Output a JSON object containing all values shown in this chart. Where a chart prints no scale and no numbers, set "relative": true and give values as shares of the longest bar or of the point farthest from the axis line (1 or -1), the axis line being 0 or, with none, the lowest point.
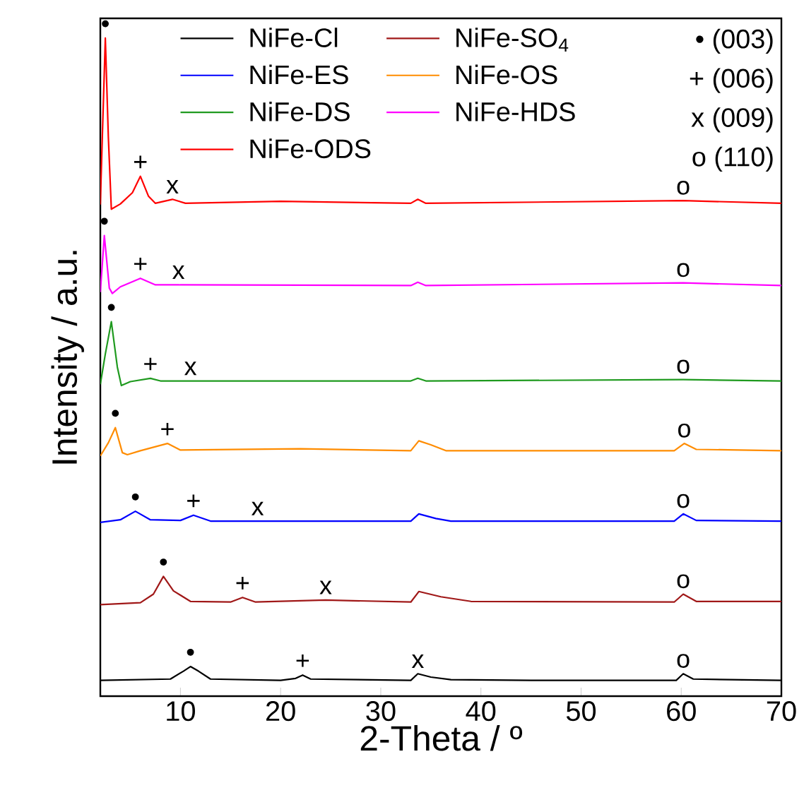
{
  "chart_data": {
    "type": "line",
    "relative": true,
    "xlabel": "2-Theta / º",
    "ylabel": "Intensity / a.u.",
    "xlim": [
      2,
      70
    ],
    "xticks": [
      10,
      20,
      30,
      40,
      50,
      60,
      70
    ],
    "legend": "top",
    "series": [
      {
        "name": "NiFe-Cl",
        "color": "#000000",
        "x": [
          2,
          9,
          10.3,
          11,
          11.8,
          13,
          20,
          21.5,
          22.2,
          23,
          33,
          33.7,
          35,
          37,
          45,
          59.5,
          60.2,
          61.2,
          70
        ],
        "values": [
          0.024,
          0.026,
          0.038,
          0.045,
          0.038,
          0.026,
          0.024,
          0.027,
          0.032,
          0.026,
          0.024,
          0.034,
          0.029,
          0.025,
          0.024,
          0.024,
          0.034,
          0.026,
          0.024
        ]
      },
      {
        "name": "NiFe-SO$_{4}$",
        "color": "#a01818",
        "x": [
          2,
          6,
          7.3,
          8.3,
          9.3,
          11,
          15,
          16.2,
          17.5,
          24.5,
          33,
          33.8,
          36,
          39,
          59.3,
          60.2,
          61.5,
          70
        ],
        "values": [
          0.139,
          0.142,
          0.155,
          0.182,
          0.16,
          0.144,
          0.143,
          0.15,
          0.143,
          0.146,
          0.143,
          0.159,
          0.151,
          0.144,
          0.143,
          0.155,
          0.144,
          0.144
        ]
      },
      {
        "name": "NiFe-ES",
        "color": "#0000ff",
        "x": [
          2,
          4,
          5.5,
          7,
          10,
          11.3,
          13,
          17.7,
          33,
          33.8,
          35.5,
          37,
          59.3,
          60.2,
          61.5,
          70
        ],
        "values": [
          0.264,
          0.268,
          0.281,
          0.268,
          0.267,
          0.275,
          0.266,
          0.266,
          0.266,
          0.277,
          0.27,
          0.266,
          0.266,
          0.277,
          0.267,
          0.266
        ]
      },
      {
        "name": "NiFe-OS",
        "color": "#ff8c00",
        "x": [
          2,
          2.8,
          3.5,
          4.2,
          4.7,
          6,
          8.7,
          10,
          22,
          33,
          33.8,
          35,
          36.5,
          59.3,
          60.3,
          61.5,
          70
        ],
        "values": [
          0.365,
          0.385,
          0.408,
          0.37,
          0.367,
          0.373,
          0.384,
          0.374,
          0.376,
          0.373,
          0.388,
          0.382,
          0.373,
          0.373,
          0.384,
          0.375,
          0.373
        ]
      },
      {
        "name": "NiFe-DS",
        "color": "#1f9a1f",
        "x": [
          2,
          2.5,
          3.1,
          3.7,
          4.1,
          5,
          7,
          8,
          11,
          33,
          33.7,
          34.5,
          60.2,
          70
        ],
        "values": [
          0.474,
          0.52,
          0.569,
          0.5,
          0.472,
          0.478,
          0.483,
          0.479,
          0.479,
          0.479,
          0.483,
          0.479,
          0.481,
          0.479
        ]
      },
      {
        "name": "NiFe-HDS",
        "color": "#ff00ff",
        "x": [
          2,
          2.4,
          2.9,
          3.2,
          4,
          6,
          7.5,
          9.8,
          33,
          33.7,
          34.5,
          60.2,
          70
        ],
        "values": [
          0.614,
          0.7,
          0.62,
          0.612,
          0.622,
          0.635,
          0.625,
          0.625,
          0.624,
          0.629,
          0.624,
          0.628,
          0.624
        ]
      },
      {
        "name": "NiFe-ODS",
        "color": "#ff0000",
        "x": [
          2,
          2.2,
          2.5,
          2.8,
          3.1,
          4,
          5.2,
          6,
          6.8,
          7.5,
          9.2,
          10.5,
          20,
          33,
          33.7,
          34.5,
          60.2,
          70
        ],
        "values": [
          0.747,
          0.85,
          1.0,
          0.85,
          0.74,
          0.748,
          0.765,
          0.79,
          0.76,
          0.749,
          0.755,
          0.749,
          0.752,
          0.749,
          0.755,
          0.749,
          0.753,
          0.749
        ]
      }
    ],
    "annotations": [
      "• (003)",
      "+ (006)",
      "x (009)",
      "o (110)",
      {
        "text": "•",
        "x": 2.5,
        "y": 1.0
      },
      {
        "text": "+",
        "x": 6,
        "y": 0.79
      },
      {
        "text": "x",
        "x": 9.2,
        "y": 0.755
      },
      {
        "text": "o",
        "x": 60.2,
        "y": 0.753
      },
      {
        "text": "•",
        "x": 2.4,
        "y": 0.7
      },
      {
        "text": "+",
        "x": 6,
        "y": 0.635
      },
      {
        "text": "x",
        "x": 9.8,
        "y": 0.625
      },
      {
        "text": "o",
        "x": 60.2,
        "y": 0.628
      },
      {
        "text": "•",
        "x": 3.1,
        "y": 0.569
      },
      {
        "text": "+",
        "x": 7,
        "y": 0.483
      },
      {
        "text": "x",
        "x": 11,
        "y": 0.479
      },
      {
        "text": "o",
        "x": 60.2,
        "y": 0.481
      },
      {
        "text": "•",
        "x": 3.5,
        "y": 0.408
      },
      {
        "text": "+",
        "x": 8.7,
        "y": 0.384
      },
      {
        "text": "o",
        "x": 60.3,
        "y": 0.384
      },
      {
        "text": "•",
        "x": 5.5,
        "y": 0.281
      },
      {
        "text": "+",
        "x": 11.3,
        "y": 0.275
      },
      {
        "text": "x",
        "x": 17.7,
        "y": 0.266
      },
      {
        "text": "o",
        "x": 60.2,
        "y": 0.277
      },
      {
        "text": "•",
        "x": 8.3,
        "y": 0.182
      },
      {
        "text": "+",
        "x": 16.2,
        "y": 0.15
      },
      {
        "text": "x",
        "x": 24.5,
        "y": 0.146
      },
      {
        "text": "o",
        "x": 60.2,
        "y": 0.155
      },
      {
        "text": "•",
        "x": 11,
        "y": 0.045
      },
      {
        "text": "+",
        "x": 22.2,
        "y": 0.032
      },
      {
        "text": "x",
        "x": 33.7,
        "y": 0.034
      },
      {
        "text": "o",
        "x": 60.2,
        "y": 0.034
      }
    ]
  }
}
